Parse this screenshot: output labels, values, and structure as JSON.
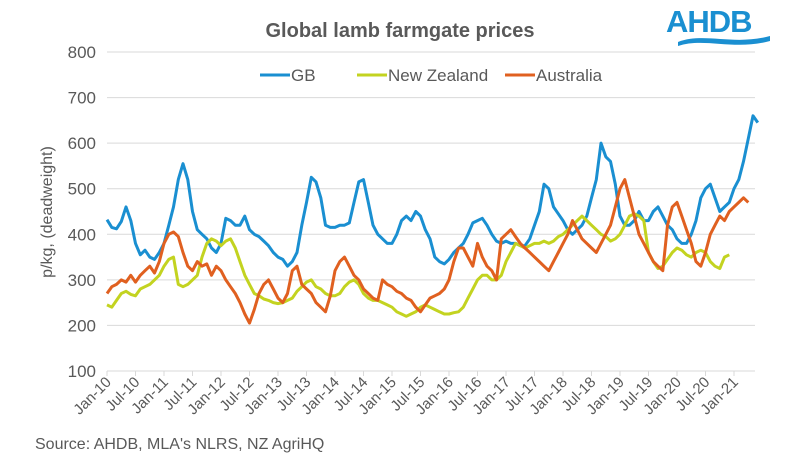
{
  "logo": {
    "text": "AHDB",
    "color": "#1a8fd1"
  },
  "source": "Source: AHDB, MLA's NLRS, NZ AgriHQ",
  "chart_data": {
    "type": "line",
    "title": "Global lamb farmgate prices",
    "xlabel": "",
    "ylabel": "p/kg, (deadweight)",
    "ylim": [
      100,
      800
    ],
    "yticks": [
      100,
      200,
      300,
      400,
      500,
      600,
      700,
      800
    ],
    "grid": true,
    "legend_position": "top-center",
    "x_start": "Jan-10",
    "x_frequency": "monthly",
    "xticks": [
      "Jan-10",
      "Jul-10",
      "Jan-11",
      "Jul-11",
      "Jan-12",
      "Jul-12",
      "Jan-13",
      "Jul-13",
      "Jan-14",
      "Jul-14",
      "Jan-15",
      "Jul-15",
      "Jan-16",
      "Jul-16",
      "Jan-17",
      "Jul-17",
      "Jan-18",
      "Jul-18",
      "Jan-19",
      "Jul-19",
      "Jan-20",
      "Jul-20",
      "Jan-21"
    ],
    "series": [
      {
        "name": "GB",
        "color": "#1a8fd1",
        "values": [
          432,
          415,
          412,
          428,
          460,
          430,
          380,
          355,
          365,
          350,
          345,
          360,
          380,
          420,
          460,
          520,
          555,
          520,
          450,
          410,
          400,
          390,
          370,
          360,
          380,
          435,
          430,
          420,
          420,
          440,
          410,
          400,
          395,
          385,
          375,
          360,
          350,
          345,
          330,
          340,
          360,
          420,
          470,
          525,
          515,
          480,
          420,
          415,
          415,
          420,
          420,
          425,
          470,
          515,
          520,
          470,
          420,
          400,
          390,
          380,
          380,
          400,
          430,
          440,
          430,
          450,
          440,
          410,
          390,
          350,
          340,
          335,
          345,
          360,
          370,
          380,
          400,
          425,
          430,
          435,
          420,
          400,
          385,
          380,
          385,
          380,
          380,
          375,
          375,
          390,
          420,
          450,
          510,
          500,
          460,
          445,
          430,
          410,
          400,
          410,
          420,
          440,
          480,
          520,
          600,
          570,
          560,
          510,
          440,
          420,
          420,
          430,
          450,
          430,
          430,
          450,
          460,
          440,
          420,
          410,
          390,
          380,
          380,
          400,
          430,
          480,
          500,
          510,
          480,
          450,
          460,
          470,
          500,
          520,
          560,
          610,
          660,
          645
        ]
      },
      {
        "name": "New Zealand",
        "color": "#c3d320",
        "values": [
          245,
          240,
          255,
          270,
          275,
          268,
          265,
          280,
          285,
          290,
          300,
          310,
          330,
          345,
          350,
          290,
          285,
          290,
          300,
          310,
          350,
          380,
          390,
          385,
          375,
          385,
          390,
          370,
          340,
          310,
          290,
          270,
          265,
          258,
          255,
          250,
          248,
          250,
          255,
          260,
          275,
          285,
          295,
          300,
          285,
          280,
          270,
          265,
          265,
          270,
          285,
          295,
          300,
          290,
          270,
          260,
          255,
          255,
          250,
          245,
          240,
          230,
          225,
          220,
          225,
          230,
          240,
          245,
          240,
          235,
          230,
          225,
          225,
          228,
          230,
          240,
          260,
          280,
          300,
          310,
          310,
          300,
          300,
          310,
          340,
          360,
          380,
          375,
          370,
          375,
          380,
          380,
          385,
          380,
          385,
          395,
          400,
          410,
          420,
          430,
          440,
          430,
          420,
          410,
          400,
          395,
          385,
          390,
          400,
          420,
          440,
          445,
          440,
          430,
          360,
          340,
          325,
          330,
          345,
          360,
          370,
          365,
          355,
          350,
          360,
          365,
          360,
          340,
          330,
          325,
          350,
          355
        ]
      },
      {
        "name": "Australia",
        "color": "#e06020",
        "values": [
          270,
          285,
          290,
          300,
          295,
          310,
          295,
          310,
          320,
          330,
          315,
          340,
          380,
          400,
          405,
          395,
          360,
          330,
          320,
          340,
          330,
          335,
          310,
          330,
          320,
          300,
          285,
          270,
          250,
          225,
          205,
          235,
          270,
          290,
          300,
          280,
          260,
          250,
          270,
          320,
          330,
          290,
          280,
          270,
          250,
          240,
          230,
          265,
          320,
          340,
          350,
          330,
          310,
          300,
          280,
          270,
          260,
          255,
          300,
          290,
          285,
          275,
          270,
          260,
          255,
          240,
          230,
          245,
          260,
          265,
          270,
          280,
          300,
          340,
          370,
          370,
          350,
          330,
          380,
          350,
          330,
          320,
          300,
          390,
          400,
          410,
          395,
          380,
          370,
          360,
          350,
          340,
          330,
          320,
          340,
          360,
          380,
          400,
          430,
          410,
          390,
          380,
          370,
          360,
          380,
          400,
          420,
          460,
          500,
          520,
          480,
          440,
          400,
          380,
          360,
          340,
          330,
          320,
          420,
          460,
          470,
          440,
          410,
          380,
          340,
          330,
          360,
          400,
          420,
          440,
          430,
          450,
          460,
          470,
          480,
          470
        ]
      }
    ]
  }
}
